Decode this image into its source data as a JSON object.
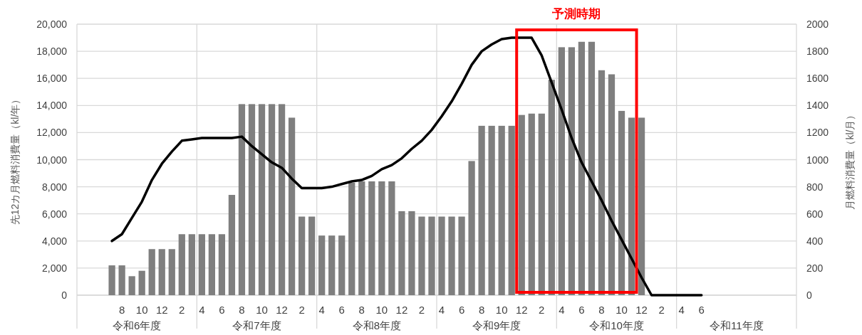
{
  "chart_data": {
    "type": "bar",
    "ylabel": "先12カ月燃料消費量（kl/年）",
    "y2label": "月燃料消費量（kl/月）",
    "categories": [
      null,
      null,
      null,
      null,
      "8",
      null,
      "10",
      null,
      "12",
      null,
      "2",
      null,
      "4",
      null,
      "6",
      null,
      "8",
      null,
      "10",
      null,
      "12",
      null,
      "2",
      null,
      "4",
      null,
      "6",
      null,
      "8",
      null,
      "10",
      null,
      "12",
      null,
      "2",
      null,
      "4",
      null,
      "6",
      null,
      "8",
      null,
      "10",
      null,
      "12",
      null,
      "2",
      null,
      "4",
      null,
      "6",
      null,
      "8",
      null,
      "10",
      null,
      "12",
      null,
      "2",
      null,
      "4",
      null,
      "6",
      null,
      null,
      null,
      null,
      null,
      null,
      null,
      null,
      null
    ],
    "series": [
      {
        "axis": "y2",
        "color": "#7f7f7f",
        "values": [
          null,
          null,
          null,
          220,
          220,
          140,
          180,
          340,
          340,
          340,
          450,
          450,
          450,
          450,
          450,
          740,
          1410,
          1410,
          1410,
          1410,
          1410,
          1310,
          580,
          580,
          440,
          440,
          440,
          830,
          840,
          840,
          840,
          840,
          620,
          620,
          580,
          580,
          580,
          580,
          580,
          990,
          1250,
          1250,
          1250,
          1250,
          1330,
          1340,
          1340,
          1590,
          1830,
          1830,
          1870,
          1870,
          1660,
          1630,
          1360,
          1310,
          1310,
          null,
          null,
          null,
          null,
          null,
          null,
          null,
          null,
          null,
          null,
          null,
          null,
          null,
          null,
          null
        ]
      },
      {
        "type": "line",
        "color": "#000000",
        "values": [
          null,
          null,
          null,
          4000,
          4500,
          5700,
          6900,
          8500,
          9700,
          10600,
          11400,
          11500,
          11600,
          11600,
          11600,
          11600,
          11700,
          11000,
          10400,
          9800,
          9400,
          8600,
          7900,
          7900,
          7900,
          8000,
          8200,
          8400,
          8500,
          8800,
          9300,
          9600,
          10100,
          10800,
          11400,
          12200,
          13200,
          14300,
          15600,
          17000,
          18000,
          18500,
          18900,
          19000,
          19000,
          19000,
          17700,
          15700,
          13700,
          11600,
          9800,
          8400,
          7000,
          5500,
          4100,
          2700,
          1300,
          0,
          0,
          0,
          0,
          0,
          0,
          null,
          null,
          null,
          null,
          null,
          null,
          null,
          null,
          null
        ]
      }
    ],
    "ylim": [
      0,
      20000
    ],
    "yticks": [
      0,
      {
        "value": 2000,
        "label": "2,000"
      },
      {
        "value": 4000,
        "label": "4,000"
      },
      {
        "value": 6000,
        "label": "6,000"
      },
      {
        "value": 8000,
        "label": "8,000"
      },
      {
        "value": 10000,
        "label": "10,000"
      },
      {
        "value": 12000,
        "label": "12,000"
      },
      {
        "value": 14000,
        "label": "14,000"
      },
      {
        "value": 16000,
        "label": "16,000"
      },
      {
        "value": 18000,
        "label": "18,000"
      },
      {
        "value": 20000,
        "label": "20,000"
      }
    ],
    "y2lim": [
      0,
      2000
    ],
    "y2ticks": [
      0,
      200,
      400,
      600,
      800,
      1000,
      1200,
      1400,
      1600,
      1800,
      2000
    ],
    "grid": "y",
    "annotations": [
      "令和6年度",
      "令和7年度",
      "令和8年度",
      "令和9年度",
      "令和10年度",
      "令和11年度",
      "予測時期"
    ]
  }
}
